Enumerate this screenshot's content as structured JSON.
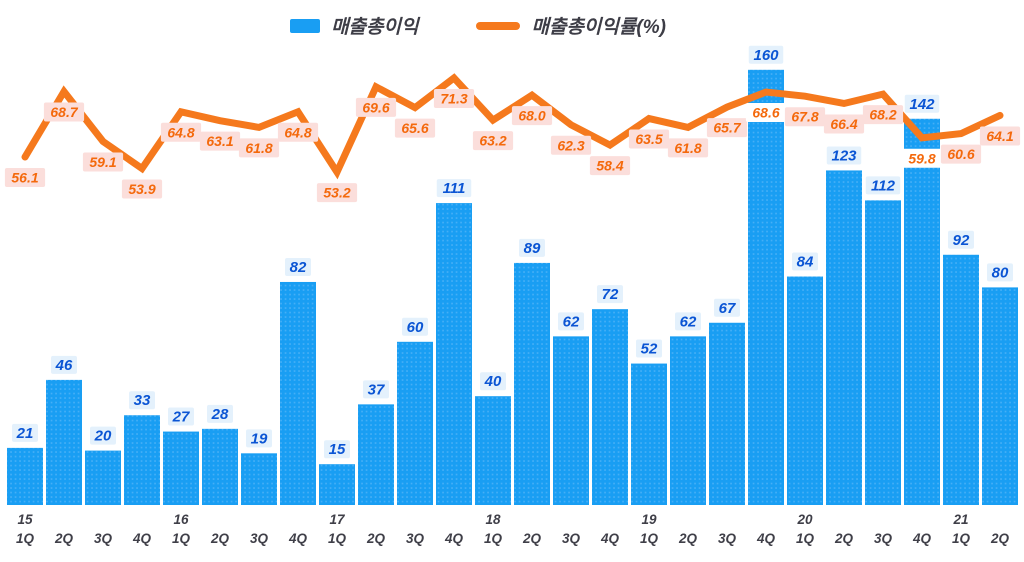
{
  "chart_data": {
    "type": "combo",
    "title": "",
    "legend_position": "top",
    "grid": false,
    "bar_ylim": [
      0,
      170
    ],
    "line_ylim": [
      50,
      75
    ],
    "quarters": [
      "1Q",
      "2Q",
      "3Q",
      "4Q",
      "1Q",
      "2Q",
      "3Q",
      "4Q",
      "1Q",
      "2Q",
      "3Q",
      "4Q",
      "1Q",
      "2Q",
      "3Q",
      "4Q",
      "1Q",
      "2Q",
      "3Q",
      "4Q",
      "1Q",
      "2Q",
      "3Q",
      "4Q",
      "1Q",
      "2Q"
    ],
    "years": [
      {
        "index": 0,
        "label": "15"
      },
      {
        "index": 4,
        "label": "16"
      },
      {
        "index": 8,
        "label": "17"
      },
      {
        "index": 12,
        "label": "18"
      },
      {
        "index": 16,
        "label": "19"
      },
      {
        "index": 20,
        "label": "20"
      },
      {
        "index": 24,
        "label": "21"
      }
    ],
    "series": [
      {
        "name": "매출총이익",
        "type": "bar",
        "values": [
          21,
          46,
          20,
          33,
          27,
          28,
          19,
          82,
          15,
          37,
          60,
          111,
          40,
          89,
          62,
          72,
          52,
          62,
          67,
          160,
          84,
          123,
          112,
          142,
          92,
          80
        ]
      },
      {
        "name": "매출총이익률(%)",
        "type": "line",
        "values": [
          56.1,
          68.7,
          59.1,
          53.9,
          64.8,
          63.1,
          61.8,
          64.8,
          53.2,
          69.6,
          65.6,
          71.3,
          63.2,
          68.0,
          62.3,
          58.4,
          63.5,
          61.8,
          65.7,
          68.6,
          67.8,
          66.4,
          68.2,
          59.8,
          60.6,
          64.1
        ],
        "labels": [
          "56.1",
          "68.7",
          "59.1",
          "53.9",
          "64.8",
          "63.1",
          "61.8",
          "64.8",
          "53.2",
          "69.6",
          "65.6",
          "71.3",
          "63.2",
          "68.0",
          "62.3",
          "58.4",
          "63.5",
          "61.8",
          "65.7",
          "68.6",
          "67.8",
          "66.4",
          "68.2",
          "59.8",
          "60.6",
          "64.1"
        ]
      }
    ],
    "colors": {
      "bar": "#199EF3",
      "bar_dot": "#45AFF6",
      "line": "#F5791D",
      "bar_label_text": "#0B55D4",
      "bar_label_bg": "#E4F1FC",
      "line_label_text": "#F4690C",
      "line_label_bg": "#FBDEDB",
      "line_label_bg_on_bar": "#FFFFFF",
      "axis_text": "#3F3F48",
      "legend_text": "#3D3D46"
    }
  }
}
